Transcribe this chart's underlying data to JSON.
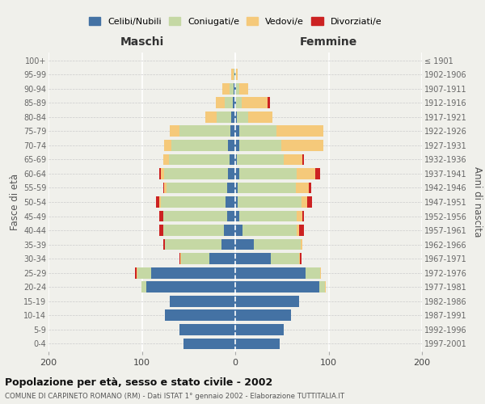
{
  "age_groups": [
    "0-4",
    "5-9",
    "10-14",
    "15-19",
    "20-24",
    "25-29",
    "30-34",
    "35-39",
    "40-44",
    "45-49",
    "50-54",
    "55-59",
    "60-64",
    "65-69",
    "70-74",
    "75-79",
    "80-84",
    "85-89",
    "90-94",
    "95-99",
    "100+"
  ],
  "birth_years": [
    "1997-2001",
    "1992-1996",
    "1987-1991",
    "1982-1986",
    "1977-1981",
    "1972-1976",
    "1967-1971",
    "1962-1966",
    "1957-1961",
    "1952-1956",
    "1947-1951",
    "1942-1946",
    "1937-1941",
    "1932-1936",
    "1927-1931",
    "1922-1926",
    "1917-1921",
    "1912-1916",
    "1907-1911",
    "1902-1906",
    "≤ 1901"
  ],
  "maschi": {
    "celibi": [
      55,
      60,
      75,
      70,
      95,
      90,
      28,
      15,
      12,
      9,
      10,
      9,
      8,
      6,
      8,
      5,
      4,
      3,
      2,
      1,
      0
    ],
    "coniugati": [
      0,
      0,
      0,
      0,
      5,
      15,
      30,
      60,
      65,
      68,
      70,
      65,
      68,
      65,
      60,
      55,
      16,
      8,
      4,
      1,
      0
    ],
    "vedovi": [
      0,
      0,
      0,
      0,
      0,
      1,
      1,
      0,
      0,
      0,
      1,
      2,
      4,
      6,
      8,
      10,
      12,
      10,
      8,
      2,
      0
    ],
    "divorziati": [
      0,
      0,
      0,
      0,
      0,
      1,
      1,
      2,
      4,
      4,
      4,
      1,
      1,
      0,
      0,
      0,
      0,
      0,
      0,
      0,
      0
    ]
  },
  "femmine": {
    "nubili": [
      48,
      52,
      60,
      68,
      90,
      75,
      38,
      20,
      8,
      4,
      3,
      3,
      4,
      2,
      4,
      4,
      2,
      1,
      1,
      0,
      0
    ],
    "coniugate": [
      0,
      0,
      0,
      0,
      6,
      16,
      30,
      50,
      58,
      62,
      68,
      62,
      62,
      50,
      45,
      40,
      12,
      6,
      3,
      1,
      0
    ],
    "vedove": [
      0,
      0,
      0,
      0,
      1,
      1,
      1,
      2,
      2,
      6,
      6,
      14,
      20,
      20,
      45,
      50,
      26,
      28,
      10,
      2,
      0
    ],
    "divorziate": [
      0,
      0,
      0,
      0,
      0,
      0,
      2,
      0,
      6,
      2,
      5,
      2,
      5,
      2,
      0,
      0,
      0,
      2,
      0,
      0,
      0
    ]
  },
  "colors": {
    "celibi": "#4472a4",
    "coniugati": "#c5d8a4",
    "vedovi": "#f5c97a",
    "divorziati": "#cc2222"
  },
  "title": "Popolazione per età, sesso e stato civile - 2002",
  "subtitle": "COMUNE DI CARPINETO ROMANO (RM) - Dati ISTAT 1° gennaio 2002 - Elaborazione TUTTITALIA.IT",
  "ylabel_left": "Fasce di età",
  "ylabel_right": "Anni di nascita",
  "xlabel_left": "Maschi",
  "xlabel_right": "Femmine",
  "xlim": 200,
  "legend_labels": [
    "Celibi/Nubili",
    "Coniugati/e",
    "Vedovi/e",
    "Divorziati/e"
  ],
  "background_color": "#f0f0eb"
}
